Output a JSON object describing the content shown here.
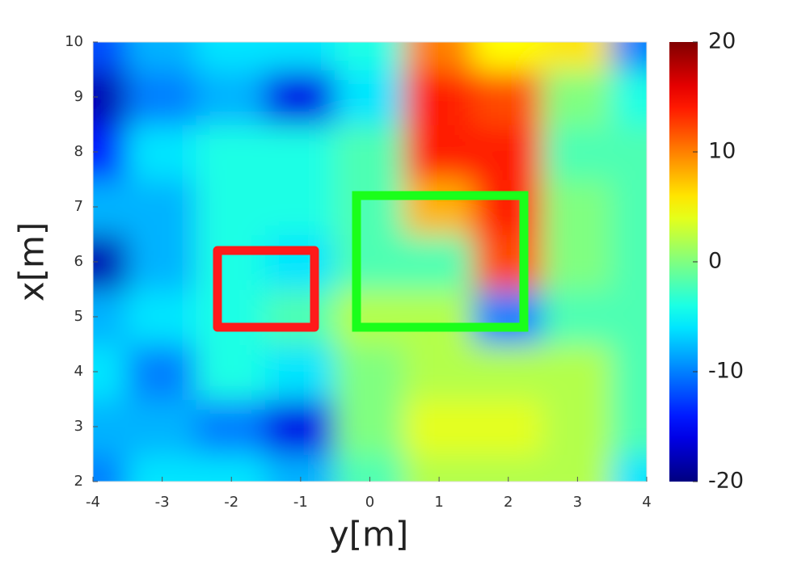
{
  "chart_data": {
    "type": "heatmap",
    "x_label": "y[m]",
    "y_label": "x[m]",
    "x": [
      -4,
      -3,
      -2,
      -1,
      0,
      1,
      2,
      3,
      4
    ],
    "y": [
      2,
      3,
      4,
      5,
      6,
      7,
      8,
      9,
      10
    ],
    "values": [
      [
        -10,
        -6,
        -6,
        -8,
        -2,
        2,
        2,
        2,
        -6
      ],
      [
        -8,
        -8,
        -10,
        -16,
        0,
        4,
        4,
        2,
        -2
      ],
      [
        -6,
        -10,
        -4,
        -6,
        0,
        2,
        2,
        2,
        -2
      ],
      [
        -8,
        -6,
        -4,
        -2,
        2,
        2,
        -10,
        -2,
        -2
      ],
      [
        -18,
        -8,
        -4,
        -6,
        -2,
        -2,
        12,
        0,
        -2
      ],
      [
        -8,
        -8,
        -4,
        -4,
        -2,
        8,
        14,
        0,
        -2
      ],
      [
        -14,
        -6,
        -4,
        -4,
        -2,
        14,
        14,
        -2,
        -2
      ],
      [
        -18,
        -10,
        -8,
        -16,
        -6,
        14,
        12,
        0,
        -4
      ],
      [
        -12,
        -8,
        -6,
        -6,
        -4,
        10,
        5,
        6,
        -10
      ]
    ],
    "xlim": [
      -4,
      4
    ],
    "ylim": [
      2,
      10
    ],
    "xticks": [
      -4,
      -3,
      -2,
      -1,
      0,
      1,
      2,
      3,
      4
    ],
    "yticks": [
      2,
      3,
      4,
      5,
      6,
      7,
      8,
      9,
      10
    ],
    "colormap": "jet",
    "clim": [
      -20,
      20
    ],
    "cticks": [
      -20,
      -10,
      0,
      10,
      20
    ]
  }
}
